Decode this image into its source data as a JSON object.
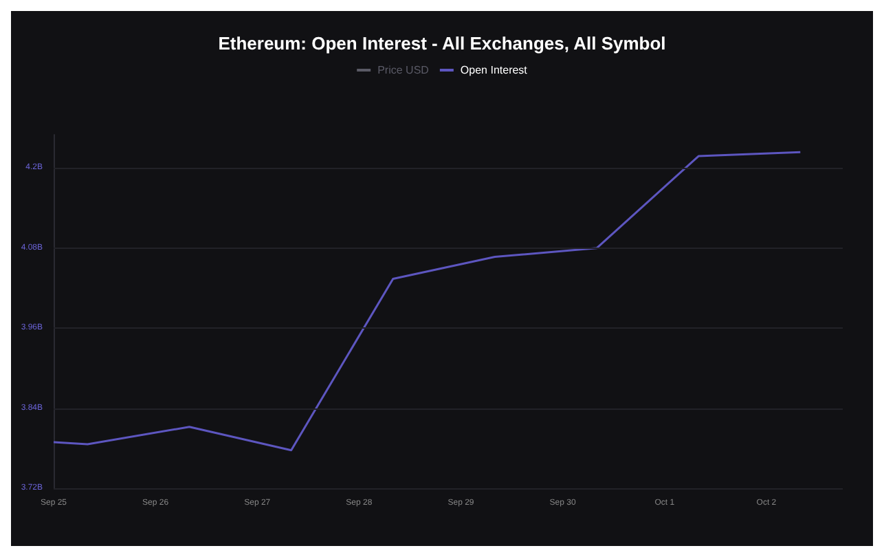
{
  "chart_data": {
    "type": "line",
    "title": "Ethereum: Open Interest - All Exchanges, All Symbol",
    "x": [
      "--09-25T00:00",
      "--09-25T08:00",
      "--09-26T08:00",
      "--09-27T08:00",
      "--09-28T08:00",
      "--09-29T08:00",
      "--09-30T08:00",
      "--10-01T08:00",
      "--10-02T08:00"
    ],
    "series": [
      {
        "name": "Price USD",
        "color": "#5a5a66",
        "values": [
          null,
          null,
          null,
          null,
          null,
          null,
          null,
          null,
          null
        ]
      },
      {
        "name": "Open Interest",
        "color": "#5d56c0",
        "values": [
          3.789,
          3.786,
          3.812,
          3.777,
          4.034,
          4.067,
          4.08,
          4.218,
          4.224
        ]
      }
    ],
    "xlim": [
      "--09-25T00:00",
      "--10-02T18:00"
    ],
    "xticks": [
      {
        "value": "--09-25",
        "label": "Sep 25"
      },
      {
        "value": "--09-26",
        "label": "Sep 26"
      },
      {
        "value": "--09-27",
        "label": "Sep 27"
      },
      {
        "value": "--09-28",
        "label": "Sep 28"
      },
      {
        "value": "--09-29",
        "label": "Sep 29"
      },
      {
        "value": "--09-30",
        "label": "Sep 30"
      },
      {
        "value": "--10-01",
        "label": "Oct 1"
      },
      {
        "value": "--10-02",
        "label": "Oct 2"
      }
    ],
    "yticks": [
      {
        "value": 3.72,
        "label": "3.72B"
      },
      {
        "value": 3.84,
        "label": "3.84B"
      },
      {
        "value": 3.96,
        "label": "3.96B"
      },
      {
        "value": 4.08,
        "label": "4.08B"
      },
      {
        "value": 4.2,
        "label": "4.2B"
      }
    ],
    "ylim": [
      3.72,
      4.25
    ],
    "grid": "y",
    "legend": "top",
    "marker": "none",
    "line_style": "solid"
  }
}
